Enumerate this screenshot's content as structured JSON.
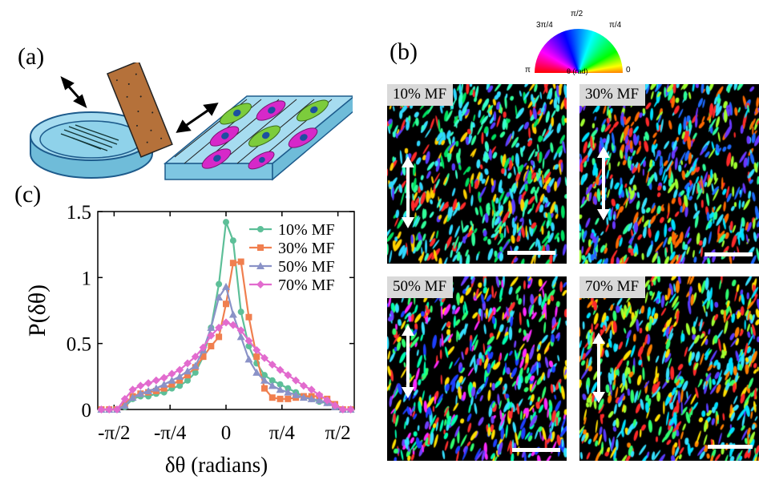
{
  "panels": {
    "a": "(a)",
    "b": "(b)",
    "c": "(c)"
  },
  "color_wheel": {
    "labels": {
      "pi_over_2": "π/2",
      "three_pi_over_4": "3π/4",
      "pi_over_4": "π/4",
      "pi": "π",
      "zero": "0",
      "axis": "θ (rad)"
    }
  },
  "micrographs": [
    {
      "label": "10% MF"
    },
    {
      "label": "30% MF"
    },
    {
      "label": "50% MF"
    },
    {
      "label": "70% MF"
    }
  ],
  "chart_data": {
    "type": "line",
    "xlabel": "δθ (radians)",
    "ylabel": "P(δθ)",
    "xlim": [
      -1.8,
      1.8
    ],
    "ylim": [
      0,
      1.5
    ],
    "xticks": [
      {
        "value": -1.5708,
        "label": "-π/2"
      },
      {
        "value": -0.7854,
        "label": "-π/4"
      },
      {
        "value": 0,
        "label": "0"
      },
      {
        "value": 0.7854,
        "label": "π/4"
      },
      {
        "value": 1.5708,
        "label": "π/2"
      }
    ],
    "yticks": [
      {
        "value": 0,
        "label": "0"
      },
      {
        "value": 0.5,
        "label": "0.5"
      },
      {
        "value": 1,
        "label": "1"
      },
      {
        "value": 1.5,
        "label": "1.5"
      }
    ],
    "legend_position": "top-right",
    "x": [
      -1.75,
      -1.64,
      -1.53,
      -1.42,
      -1.31,
      -1.2,
      -1.09,
      -0.98,
      -0.87,
      -0.76,
      -0.65,
      -0.54,
      -0.43,
      -0.32,
      -0.21,
      -0.1,
      0.0,
      0.1,
      0.21,
      0.32,
      0.43,
      0.54,
      0.65,
      0.76,
      0.87,
      0.98,
      1.09,
      1.2,
      1.31,
      1.42,
      1.53,
      1.64,
      1.75
    ],
    "series": [
      {
        "name": "10% MF",
        "color": "#5dbf98",
        "marker": "circle",
        "values": [
          0,
          0,
          0,
          0.02,
          0.08,
          0.1,
          0.1,
          0.12,
          0.13,
          0.16,
          0.18,
          0.22,
          0.28,
          0.4,
          0.62,
          0.95,
          1.42,
          1.28,
          0.74,
          0.48,
          0.35,
          0.26,
          0.22,
          0.19,
          0.16,
          0.13,
          0.1,
          0.08,
          0.06,
          0.05,
          0.02,
          0,
          0
        ]
      },
      {
        "name": "30% MF",
        "color": "#f07f4f",
        "marker": "square",
        "values": [
          0,
          0,
          0,
          0.04,
          0.1,
          0.12,
          0.13,
          0.14,
          0.16,
          0.19,
          0.22,
          0.26,
          0.32,
          0.4,
          0.48,
          0.55,
          0.8,
          1.11,
          1.12,
          0.7,
          0.4,
          0.16,
          0.09,
          0.08,
          0.08,
          0.09,
          0.1,
          0.1,
          0.1,
          0.08,
          0.04,
          0,
          0
        ]
      },
      {
        "name": "50% MF",
        "color": "#8a92c7",
        "marker": "triangle",
        "values": [
          0,
          0,
          0,
          0.03,
          0.09,
          0.12,
          0.14,
          0.16,
          0.19,
          0.22,
          0.25,
          0.29,
          0.33,
          0.45,
          0.62,
          0.85,
          0.93,
          0.72,
          0.55,
          0.38,
          0.28,
          0.22,
          0.18,
          0.15,
          0.13,
          0.11,
          0.09,
          0.08,
          0.07,
          0.05,
          0.02,
          0,
          0
        ]
      },
      {
        "name": "70% MF",
        "color": "#e26bce",
        "marker": "diamond",
        "values": [
          0,
          0,
          0,
          0.08,
          0.15,
          0.18,
          0.2,
          0.22,
          0.24,
          0.27,
          0.3,
          0.35,
          0.4,
          0.47,
          0.56,
          0.62,
          0.66,
          0.64,
          0.6,
          0.52,
          0.45,
          0.39,
          0.34,
          0.3,
          0.26,
          0.22,
          0.18,
          0.15,
          0.11,
          0.07,
          0.03,
          0,
          0
        ]
      }
    ]
  }
}
